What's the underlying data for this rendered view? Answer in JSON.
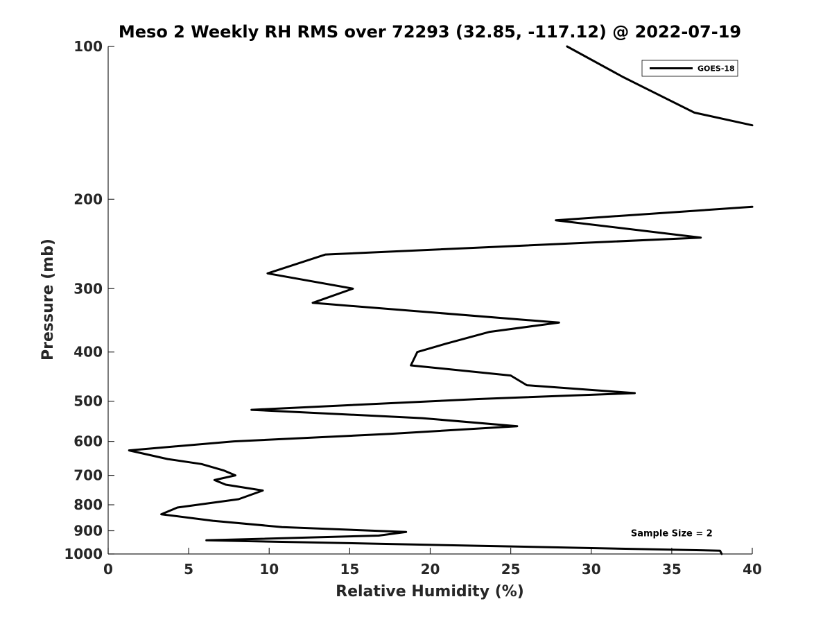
{
  "chart_data": {
    "type": "line",
    "title": "Meso 2 Weekly RH RMS over 72293 (32.85, -117.12) @ 2022-07-19",
    "xlabel": "Relative Humidity (%)",
    "ylabel": "Pressure (mb)",
    "xlim": [
      0,
      40
    ],
    "ylim": [
      100,
      1000
    ],
    "yscale": "log",
    "yreversed": true,
    "grid": false,
    "xticks": [
      0,
      5,
      10,
      15,
      20,
      25,
      30,
      35,
      40
    ],
    "xtick_labels": [
      "0",
      "5",
      "10",
      "15",
      "20",
      "25",
      "30",
      "35",
      "40"
    ],
    "yticks": [
      100,
      200,
      300,
      400,
      500,
      600,
      700,
      800,
      900,
      1000
    ],
    "ytick_labels": [
      "100",
      "200",
      "300",
      "400",
      "500",
      "600",
      "700",
      "800",
      "900",
      "1000"
    ],
    "legend_position": "top-right",
    "series": [
      {
        "name": "GOES-18",
        "color": "#000000",
        "segments": [
          {
            "x": [
              28.5,
              32.0,
              36.4,
              40.0
            ],
            "y": [
              100,
              115,
              135,
              143
            ]
          },
          {
            "x": [
              40.0,
              27.8,
              36.8,
              13.5,
              9.9,
              15.2,
              12.7,
              28.0,
              23.7,
              21.0,
              19.2,
              18.8,
              25.0,
              26.0,
              32.7,
              23.0,
              8.9,
              19.5,
              25.4,
              17.5,
              7.8,
              1.3,
              3.7,
              5.8,
              7.2,
              7.9,
              6.6,
              7.3,
              9.6,
              8.1,
              4.3,
              3.3,
              6.5,
              10.8,
              18.5,
              16.8,
              6.1,
              38.0,
              38.1
            ],
            "y": [
              207,
              220,
              238,
              257,
              280,
              300,
              320,
              350,
              365,
              385,
              400,
              425,
              445,
              465,
              482,
              495,
              520,
              540,
              560,
              580,
              600,
              625,
              650,
              665,
              685,
              700,
              715,
              730,
              750,
              780,
              810,
              835,
              860,
              885,
              905,
              920,
              940,
              985,
              1000
            ]
          }
        ]
      }
    ],
    "annotations": [
      {
        "text": "Sample Size = 2",
        "x": 35.0,
        "y": 905
      }
    ]
  }
}
